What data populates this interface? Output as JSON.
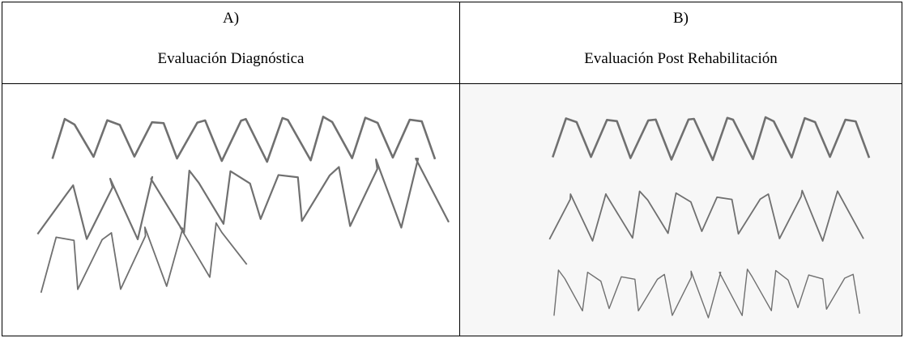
{
  "table": {
    "header": [
      {
        "label": "A)",
        "title": "Evaluación Diagnóstica"
      },
      {
        "label": "B)",
        "title": "Evaluación Post Rehabilitación"
      }
    ]
  }
}
